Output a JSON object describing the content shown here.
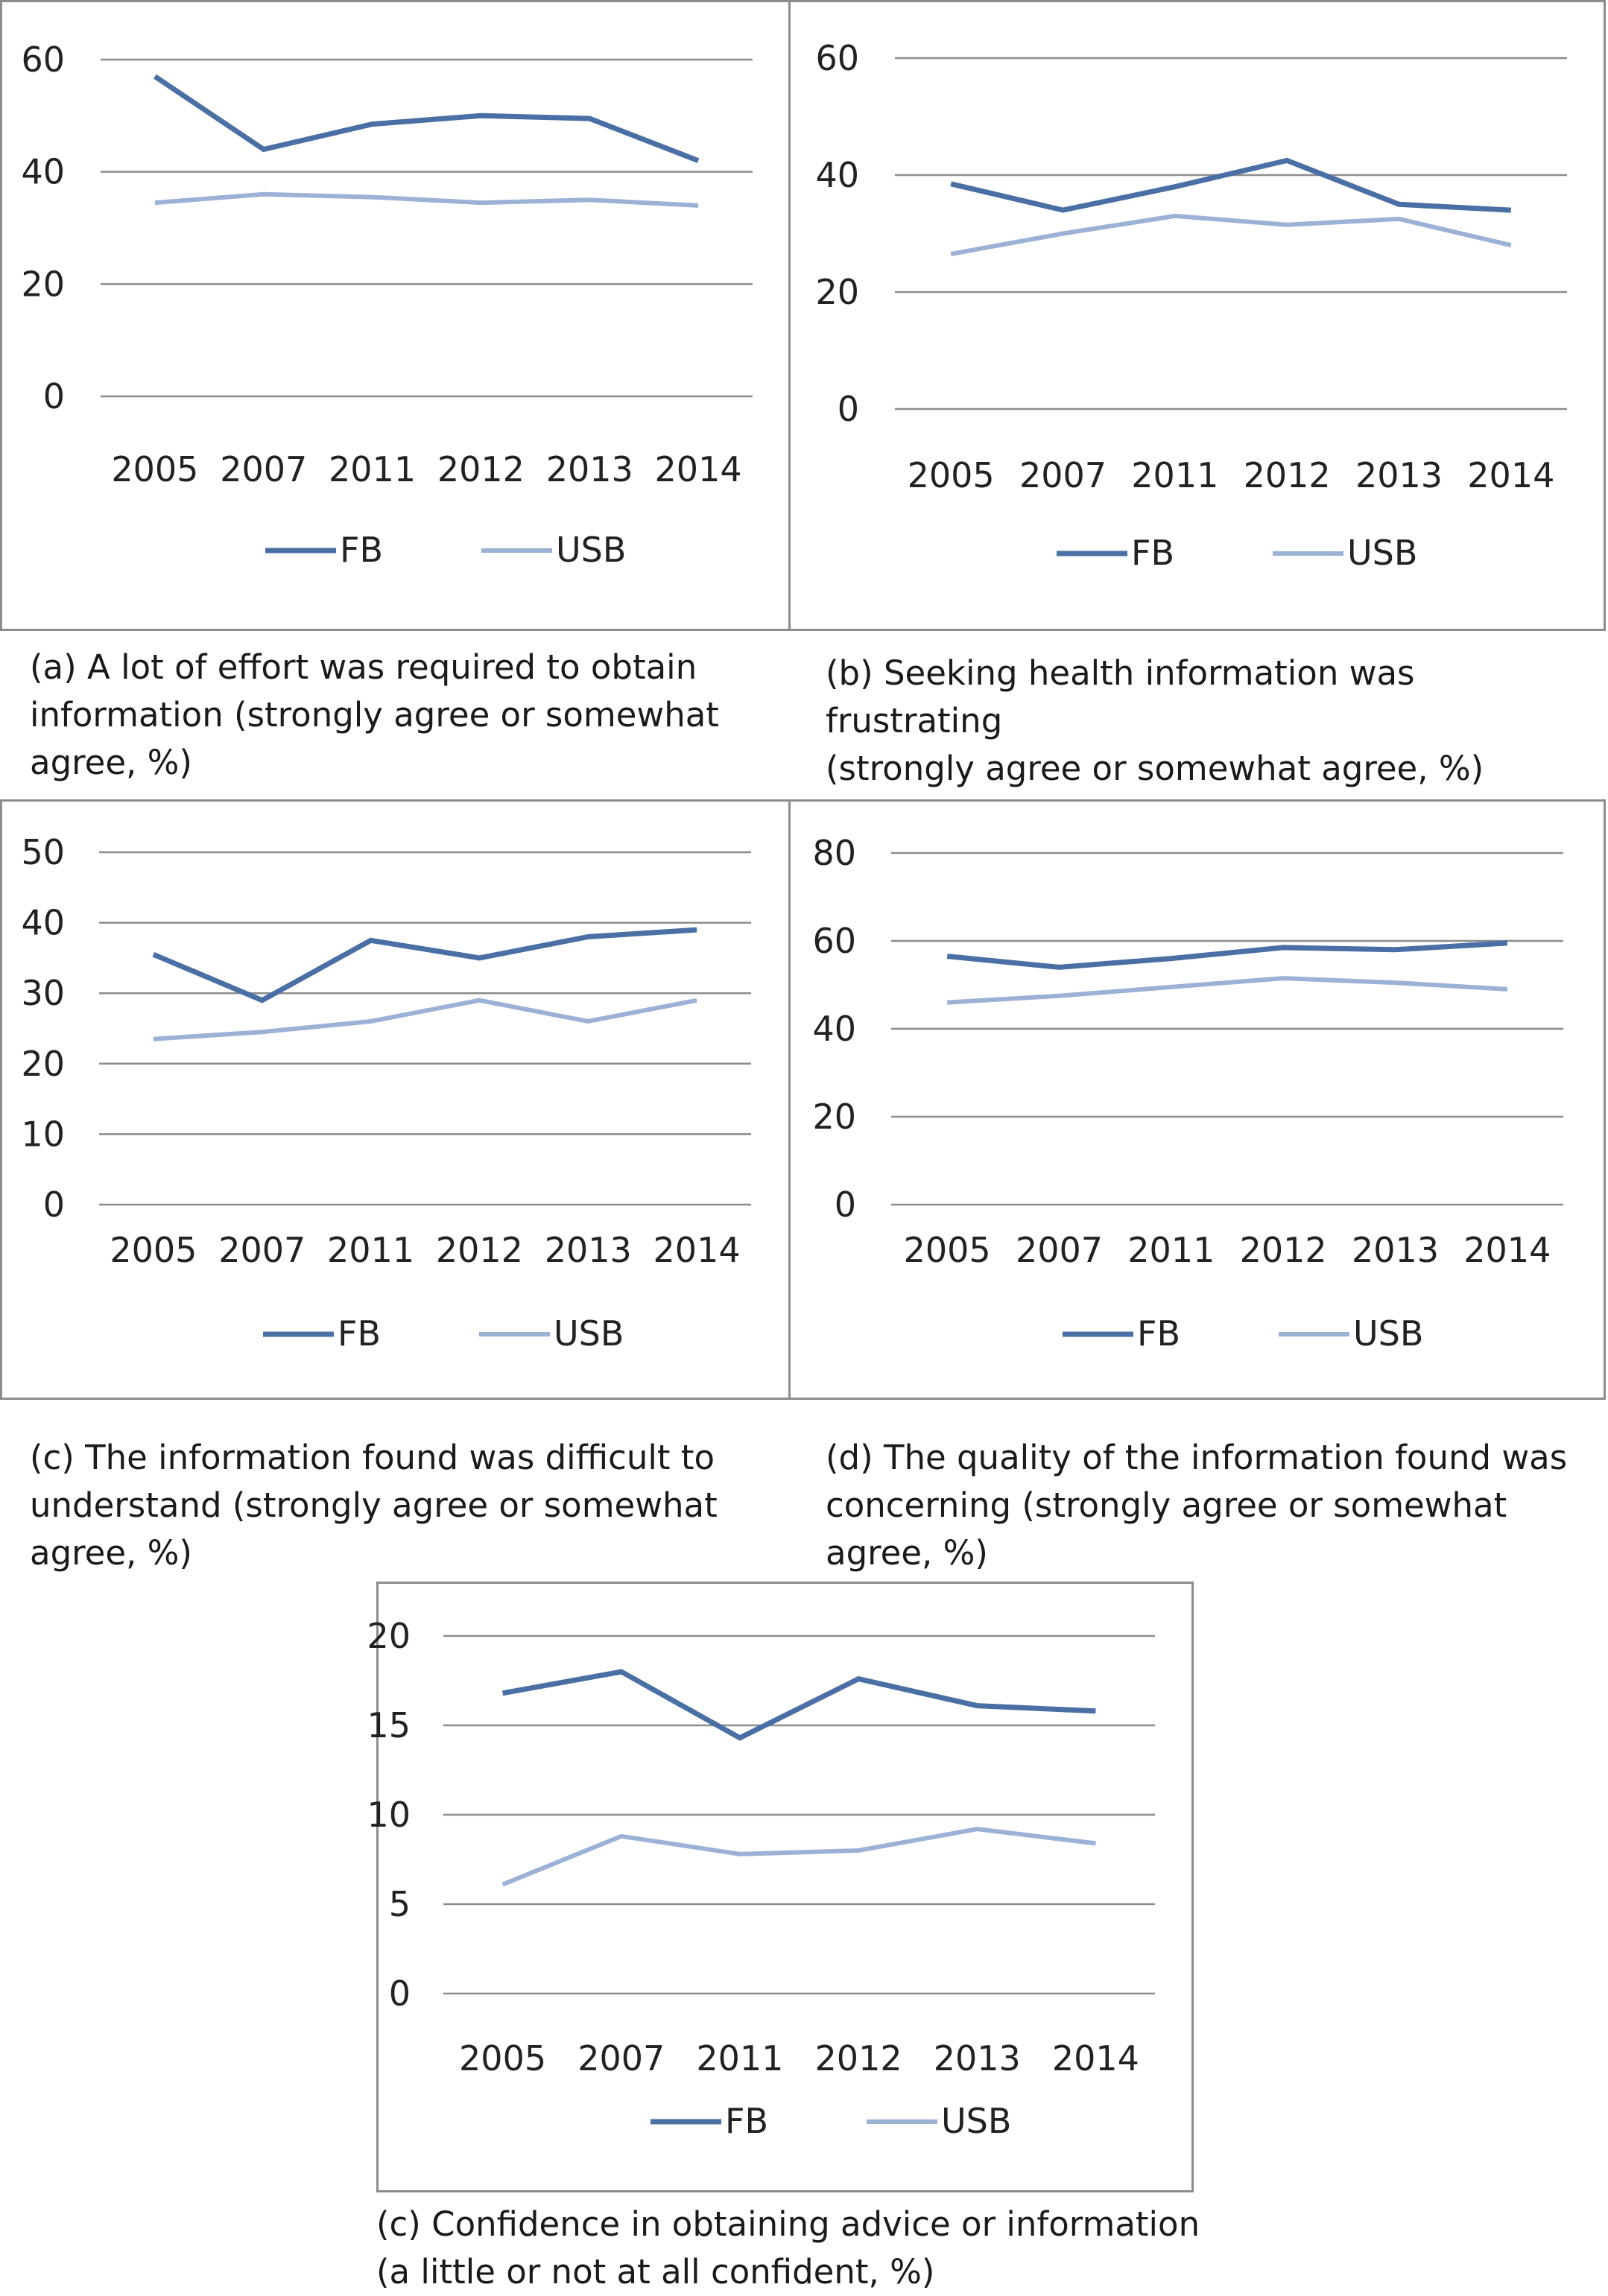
{
  "colors": {
    "FB": "#4a6fa5",
    "USB": "#9bb1d6",
    "grid": "#8c8c8c",
    "frame": "#8c8c8c"
  },
  "chart_data": [
    {
      "type": "line",
      "panel": "a",
      "title": "(a) A lot of effort was required to obtain\ninformation (strongly agree or somewhat\nagree, %)",
      "categories": [
        "2005",
        "2007",
        "2011",
        "2012",
        "2013",
        "2014"
      ],
      "yticks": [
        "0",
        "20",
        "40",
        "60"
      ],
      "ylim": [
        0,
        60
      ],
      "series": [
        {
          "name": "FB",
          "values": [
            57,
            44,
            48.5,
            50,
            49.5,
            42
          ]
        },
        {
          "name": "USB",
          "values": [
            34.5,
            36,
            35.5,
            34.5,
            35,
            34
          ]
        }
      ],
      "legend": "bottom"
    },
    {
      "type": "line",
      "panel": "b",
      "title": "(b) Seeking health information was frustrating\n(strongly agree or somewhat agree, %)",
      "categories": [
        "2005",
        "2007",
        "2011",
        "2012",
        "2013",
        "2014"
      ],
      "yticks": [
        "0",
        "20",
        "40",
        "60"
      ],
      "ylim": [
        0,
        60
      ],
      "series": [
        {
          "name": "FB",
          "values": [
            38.5,
            34,
            38,
            42.5,
            35,
            34
          ]
        },
        {
          "name": "USB",
          "values": [
            26.5,
            30,
            33,
            31.5,
            32.5,
            28
          ]
        }
      ],
      "legend": "bottom"
    },
    {
      "type": "line",
      "panel": "c",
      "title": "(c) The information found was difficult to\nunderstand (strongly agree or somewhat\nagree, %)",
      "categories": [
        "2005",
        "2007",
        "2011",
        "2012",
        "2013",
        "2014"
      ],
      "yticks": [
        "0",
        "10",
        "20",
        "30",
        "40",
        "50"
      ],
      "ylim": [
        0,
        50
      ],
      "series": [
        {
          "name": "FB",
          "values": [
            35.5,
            29,
            37.5,
            35,
            38,
            39
          ]
        },
        {
          "name": "USB",
          "values": [
            23.5,
            24.5,
            26,
            29,
            26,
            29
          ]
        }
      ],
      "legend": "bottom"
    },
    {
      "type": "line",
      "panel": "d",
      "title": "(d) The quality of the information found was\nconcerning (strongly agree or somewhat\nagree, %)",
      "categories": [
        "2005",
        "2007",
        "2011",
        "2012",
        "2013",
        "2014"
      ],
      "yticks": [
        "0",
        "20",
        "40",
        "60",
        "80"
      ],
      "ylim": [
        0,
        80
      ],
      "series": [
        {
          "name": "FB",
          "values": [
            56.5,
            54,
            56,
            58.5,
            58,
            59.5
          ]
        },
        {
          "name": "USB",
          "values": [
            46,
            47.5,
            49.5,
            51.5,
            50.5,
            49
          ]
        }
      ],
      "legend": "bottom"
    },
    {
      "type": "line",
      "panel": "e",
      "title": "(c) Confidence in obtaining advice or information\n(a little or not at all confident, %)",
      "categories": [
        "2005",
        "2007",
        "2011",
        "2012",
        "2013",
        "2014"
      ],
      "yticks": [
        "0",
        "5",
        "10",
        "15",
        "20"
      ],
      "ylim": [
        0,
        20
      ],
      "series": [
        {
          "name": "FB",
          "values": [
            16.8,
            18,
            14.3,
            17.6,
            16.1,
            15.8
          ]
        },
        {
          "name": "USB",
          "values": [
            6.1,
            8.8,
            7.8,
            8,
            9.2,
            8.4
          ]
        }
      ],
      "legend": "bottom"
    }
  ]
}
